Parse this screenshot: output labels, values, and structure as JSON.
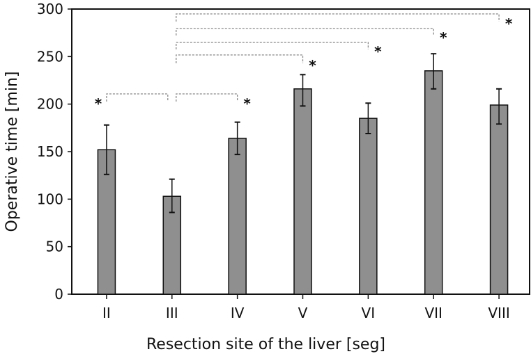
{
  "chart_data": {
    "type": "bar",
    "title": "",
    "xlabel": "Resection site of the liver [seg]",
    "ylabel": "Operative time [min]",
    "ylim": [
      0,
      300
    ],
    "yticks": [
      0,
      50,
      100,
      150,
      200,
      250,
      300
    ],
    "categories": [
      "II",
      "III",
      "IV",
      "V",
      "VI",
      "VII",
      "VIII"
    ],
    "values": [
      152,
      103,
      164,
      216,
      185,
      235,
      199
    ],
    "error_low": [
      126,
      86,
      147,
      198,
      169,
      216,
      179
    ],
    "error_high": [
      178,
      121,
      181,
      231,
      201,
      253,
      216
    ],
    "bar_color": "#8f8f8f",
    "grid": false,
    "significance": [
      {
        "from": "III",
        "to": "II",
        "label": "*"
      },
      {
        "from": "III",
        "to": "IV",
        "label": "*"
      },
      {
        "from": "III",
        "to": "V",
        "label": "*"
      },
      {
        "from": "III",
        "to": "VI",
        "label": "*"
      },
      {
        "from": "III",
        "to": "VII",
        "label": "*"
      },
      {
        "from": "III",
        "to": "VIII",
        "label": "*"
      }
    ]
  }
}
